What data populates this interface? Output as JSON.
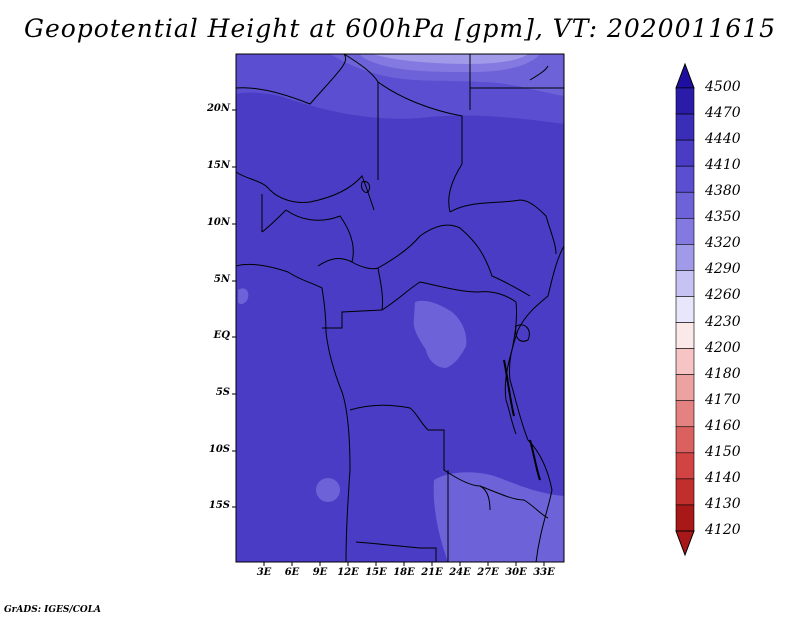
{
  "title": "Geopotential Height at 600hPa [gpm], VT: 2020011615",
  "credit": "GrADS: IGES/COLA",
  "map": {
    "lat_labels": [
      "20N",
      "15N",
      "10N",
      "5N",
      "EQ",
      "5S",
      "10S",
      "15S"
    ],
    "lon_labels": [
      "3E",
      "6E",
      "9E",
      "12E",
      "15E",
      "18E",
      "21E",
      "24E",
      "27E",
      "30E",
      "33E"
    ]
  },
  "colorbar": {
    "levels": [
      "4500",
      "4470",
      "4440",
      "4410",
      "4380",
      "4350",
      "4320",
      "4290",
      "4260",
      "4230",
      "4200",
      "4180",
      "4170",
      "4160",
      "4150",
      "4140",
      "4130",
      "4120"
    ],
    "colors": [
      "#1e0fa0",
      "#2a1ca8",
      "#3a2db8",
      "#4a3cc4",
      "#5b4ed0",
      "#6e62d8",
      "#8479e0",
      "#a09ae8",
      "#c6c2f2",
      "#e8e6fa",
      "#fbe8e8",
      "#f6c4c4",
      "#eda2a2",
      "#e48181",
      "#db6060",
      "#d24444",
      "#c22e2e",
      "#a81818"
    ]
  },
  "colors": {
    "base_fill": "#4a3cc4",
    "higher_fill": "#5b4ed0",
    "highest_fill": "#8479e0",
    "top_fill": "#a09ae8",
    "lower_fill": "#6e62d8",
    "border": "#000000"
  }
}
